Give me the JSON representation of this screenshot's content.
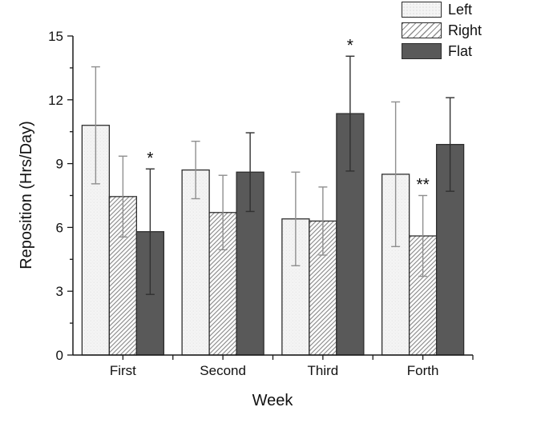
{
  "window": {
    "background": "#ffffff"
  },
  "chart_data": {
    "type": "bar",
    "title": "",
    "xlabel": "Week",
    "ylabel": "Reposition (Hrs/Day)",
    "categories": [
      "First",
      "Second",
      "Third",
      "Forth"
    ],
    "ylim": [
      0,
      15
    ],
    "yticks": [
      0,
      3,
      6,
      9,
      12,
      15
    ],
    "y_minor_ticks": [
      1.5,
      4.5,
      7.5,
      10.5,
      13.5
    ],
    "grid": false,
    "legend_position": "top-right",
    "axis_color": "#1a1a1a",
    "series": [
      {
        "name": "Left",
        "style": "light-dotted",
        "fill": "#f4f4f4",
        "error_color": "#8f8f8f",
        "values": [
          10.8,
          8.7,
          6.4,
          8.5
        ],
        "errors": [
          2.75,
          1.35,
          2.2,
          3.4
        ]
      },
      {
        "name": "Right",
        "style": "diagonal-hatch",
        "fill": "#ffffff",
        "hatch_color": "#8f8f8f",
        "error_color": "#8f8f8f",
        "values": [
          7.45,
          6.7,
          6.3,
          5.6
        ],
        "errors": [
          1.9,
          1.75,
          1.6,
          1.9
        ]
      },
      {
        "name": "Flat",
        "style": "solid-dark",
        "fill": "#595959",
        "error_color": "#303030",
        "values": [
          5.8,
          8.6,
          11.35,
          9.9
        ],
        "errors": [
          2.95,
          1.85,
          2.7,
          2.2
        ]
      }
    ],
    "annotations": [
      {
        "category": "First",
        "series": "Flat",
        "text": "*"
      },
      {
        "category": "Third",
        "series": "Flat",
        "text": "*"
      },
      {
        "category": "Forth",
        "series": "Right",
        "text": "**"
      }
    ]
  }
}
